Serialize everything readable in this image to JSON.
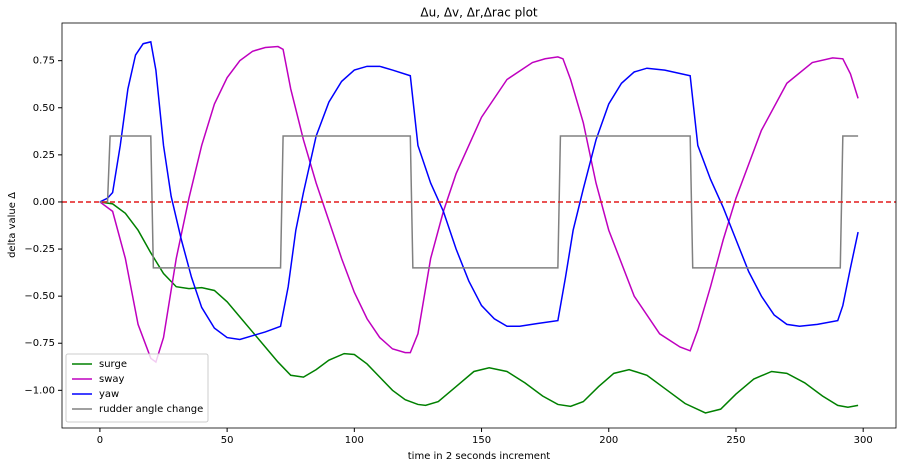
{
  "chart_data": {
    "type": "line",
    "title": "Δu, Δv, Δr,Δrac  plot",
    "xlabel": "time in 2 seconds increment",
    "ylabel": "delta value Δ",
    "xlim": [
      -14.9,
      312.9
    ],
    "ylim": [
      -1.2,
      0.95
    ],
    "xticks": [
      0,
      50,
      100,
      150,
      200,
      250,
      300
    ],
    "yticks": [
      {
        "value": 0.75,
        "label": "0.75"
      },
      {
        "value": 0.5,
        "label": "0.50"
      },
      {
        "value": 0.25,
        "label": "0.25"
      },
      {
        "value": 0,
        "label": "0.00"
      },
      {
        "value": -0.25,
        "label": "−0.25"
      },
      {
        "value": -0.5,
        "label": "−0.50"
      },
      {
        "value": -0.75,
        "label": "−0.75"
      },
      {
        "value": -1,
        "label": "−1.00"
      }
    ],
    "hline": {
      "value": 0,
      "color": "#e41a1c",
      "style": "dashed"
    },
    "legend": "lower left",
    "series": [
      {
        "name": "surge",
        "color": "#008000",
        "x": [
          0,
          5,
          10,
          15,
          20,
          25,
          30,
          35,
          40,
          45,
          50,
          55,
          60,
          65,
          70,
          75,
          80,
          85,
          90,
          96,
          100,
          105,
          110,
          115,
          120,
          125,
          128,
          133,
          140,
          147,
          153,
          160,
          167,
          174,
          180,
          185,
          190,
          196,
          202,
          208,
          215,
          222,
          230,
          238,
          244,
          250,
          257,
          264,
          270,
          277,
          284,
          290,
          294,
          298
        ],
        "values": [
          0,
          -0.01,
          -0.06,
          -0.15,
          -0.27,
          -0.38,
          -0.45,
          -0.46,
          -0.455,
          -0.47,
          -0.53,
          -0.61,
          -0.69,
          -0.77,
          -0.85,
          -0.92,
          -0.93,
          -0.89,
          -0.84,
          -0.805,
          -0.81,
          -0.86,
          -0.93,
          -1.0,
          -1.05,
          -1.075,
          -1.08,
          -1.06,
          -0.98,
          -0.9,
          -0.88,
          -0.9,
          -0.96,
          -1.03,
          -1.075,
          -1.085,
          -1.06,
          -0.98,
          -0.91,
          -0.89,
          -0.92,
          -0.99,
          -1.07,
          -1.12,
          -1.1,
          -1.02,
          -0.94,
          -0.9,
          -0.91,
          -0.96,
          -1.03,
          -1.08,
          -1.09,
          -1.08
        ]
      },
      {
        "name": "sway",
        "color": "#bf00bf",
        "x": [
          0,
          5,
          10,
          15,
          20,
          22,
          25,
          30,
          35,
          40,
          45,
          50,
          55,
          60,
          65,
          70,
          72,
          75,
          80,
          85,
          90,
          95,
          100,
          105,
          110,
          115,
          120,
          122,
          125,
          130,
          135,
          140,
          150,
          160,
          170,
          175,
          180,
          182,
          185,
          190,
          195,
          200,
          210,
          220,
          228,
          232,
          235,
          240,
          245,
          250,
          255,
          260,
          270,
          280,
          288,
          292,
          295,
          298
        ],
        "values": [
          0,
          -0.05,
          -0.3,
          -0.65,
          -0.83,
          -0.85,
          -0.72,
          -0.3,
          0.02,
          0.3,
          0.52,
          0.66,
          0.75,
          0.8,
          0.82,
          0.825,
          0.81,
          0.6,
          0.33,
          0.1,
          -0.1,
          -0.3,
          -0.48,
          -0.62,
          -0.72,
          -0.78,
          -0.8,
          -0.8,
          -0.7,
          -0.3,
          -0.05,
          0.15,
          0.45,
          0.65,
          0.74,
          0.76,
          0.77,
          0.76,
          0.65,
          0.42,
          0.1,
          -0.15,
          -0.5,
          -0.7,
          -0.77,
          -0.79,
          -0.68,
          -0.45,
          -0.2,
          0.02,
          0.2,
          0.38,
          0.63,
          0.74,
          0.765,
          0.76,
          0.68,
          0.55
        ]
      },
      {
        "name": "yaw",
        "color": "#0000ff",
        "x": [
          0,
          3,
          5,
          8,
          11,
          14,
          17,
          20,
          22,
          25,
          28,
          32,
          36,
          40,
          45,
          50,
          55,
          60,
          65,
          71,
          74,
          77,
          80,
          85,
          90,
          95,
          100,
          105,
          110,
          115,
          122,
          125,
          130,
          135,
          140,
          145,
          150,
          155,
          160,
          165,
          172,
          180,
          183,
          186,
          190,
          195,
          200,
          205,
          210,
          215,
          222,
          232,
          235,
          240,
          245,
          250,
          255,
          260,
          265,
          270,
          275,
          282,
          290,
          292,
          295,
          298
        ],
        "values": [
          0,
          0.02,
          0.05,
          0.3,
          0.6,
          0.78,
          0.84,
          0.85,
          0.7,
          0.3,
          0.03,
          -0.2,
          -0.4,
          -0.56,
          -0.67,
          -0.72,
          -0.73,
          -0.71,
          -0.69,
          -0.66,
          -0.45,
          -0.15,
          0.05,
          0.35,
          0.53,
          0.64,
          0.7,
          0.72,
          0.72,
          0.7,
          0.67,
          0.3,
          0.1,
          -0.05,
          -0.25,
          -0.42,
          -0.55,
          -0.62,
          -0.66,
          -0.66,
          -0.645,
          -0.63,
          -0.4,
          -0.15,
          0.07,
          0.33,
          0.52,
          0.63,
          0.69,
          0.71,
          0.7,
          0.67,
          0.3,
          0.12,
          -0.03,
          -0.2,
          -0.37,
          -0.5,
          -0.6,
          -0.65,
          -0.66,
          -0.65,
          -0.63,
          -0.55,
          -0.35,
          -0.16
        ]
      },
      {
        "name": "rudder angle change",
        "color": "#808080",
        "x": [
          0,
          3,
          4,
          20,
          21,
          71,
          72,
          122,
          123,
          180,
          181,
          232,
          233,
          291,
          292,
          298
        ],
        "values": [
          0,
          0,
          0.35,
          0.35,
          -0.35,
          -0.35,
          0.35,
          0.35,
          -0.35,
          -0.35,
          0.35,
          0.35,
          -0.35,
          -0.35,
          0.35,
          0.35
        ]
      }
    ]
  }
}
